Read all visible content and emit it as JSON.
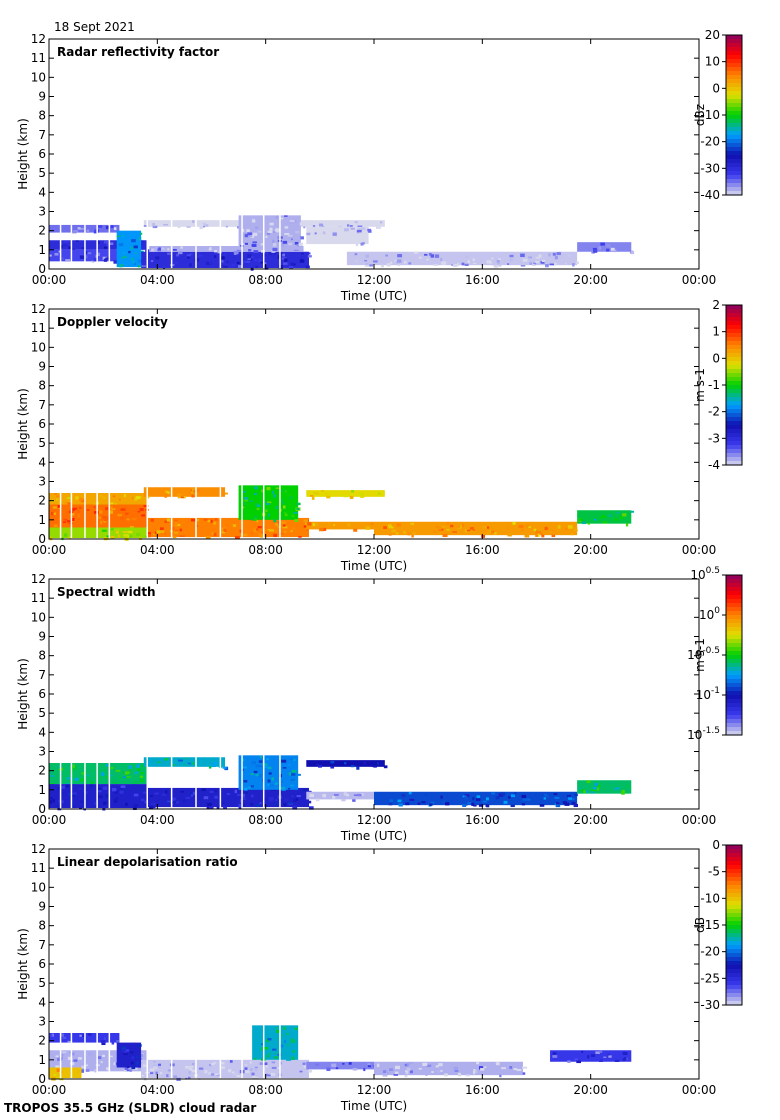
{
  "header": {
    "date": "18 Sept 2021"
  },
  "footer": {
    "caption": "TROPOS 35.5 GHz (SLDR) cloud radar"
  },
  "chart_data": [
    {
      "type": "heatmap",
      "title": "Radar reflectivity factor",
      "xlabel": "Time (UTC)",
      "ylabel": "Height (km)",
      "xticks": [
        "00:00",
        "04:00",
        "08:00",
        "12:00",
        "16:00",
        "20:00",
        "00:00"
      ],
      "xlim_hours": [
        0,
        24
      ],
      "ylim_km": [
        0,
        12
      ],
      "yticks": [
        0,
        1,
        2,
        3,
        4,
        5,
        6,
        7,
        8,
        9,
        10,
        11,
        12
      ],
      "colorbar": {
        "unit": "dBz",
        "range": [
          -40,
          20
        ],
        "ticks": [
          {
            "value": 20,
            "label": "20"
          },
          {
            "value": 10,
            "label": "10"
          },
          {
            "value": 0,
            "label": "0"
          },
          {
            "value": -10,
            "label": "-10"
          },
          {
            "value": -20,
            "label": "-20"
          },
          {
            "value": -30,
            "label": "-30"
          },
          {
            "value": -40,
            "label": "-40"
          }
        ]
      },
      "echo_layers": [
        {
          "t0": 0.0,
          "t1": 2.6,
          "h0": 1.9,
          "h1": 2.3,
          "value": -35
        },
        {
          "t0": 0.0,
          "t1": 3.6,
          "h0": 1.0,
          "h1": 1.5,
          "value": -30
        },
        {
          "t0": 0.0,
          "t1": 2.6,
          "h0": 0.4,
          "h1": 1.0,
          "value": -33
        },
        {
          "t0": 2.5,
          "t1": 3.4,
          "h0": 0.1,
          "h1": 2.0,
          "value": -18
        },
        {
          "t0": 3.4,
          "t1": 9.6,
          "h0": 0.05,
          "h1": 0.9,
          "value": -30
        },
        {
          "t0": 3.7,
          "t1": 9.4,
          "h0": 0.9,
          "h1": 1.2,
          "value": -38
        },
        {
          "t0": 3.5,
          "t1": 12.4,
          "h0": 2.2,
          "h1": 2.55,
          "value": -40
        },
        {
          "t0": 7.0,
          "t1": 9.3,
          "h0": 1.0,
          "h1": 2.8,
          "value": -38
        },
        {
          "t0": 9.5,
          "t1": 11.8,
          "h0": 1.3,
          "h1": 2.2,
          "value": -40
        },
        {
          "t0": 11.0,
          "t1": 19.5,
          "h0": 0.2,
          "h1": 0.9,
          "value": -39
        },
        {
          "t0": 19.5,
          "t1": 21.5,
          "h0": 0.9,
          "h1": 1.4,
          "value": -36
        }
      ]
    },
    {
      "type": "heatmap",
      "title": "Doppler velocity",
      "xlabel": "Time (UTC)",
      "ylabel": "Height (km)",
      "xticks": [
        "00:00",
        "04:00",
        "08:00",
        "12:00",
        "16:00",
        "20:00",
        "00:00"
      ],
      "xlim_hours": [
        0,
        24
      ],
      "ylim_km": [
        0,
        12
      ],
      "yticks": [
        0,
        1,
        2,
        3,
        4,
        5,
        6,
        7,
        8,
        9,
        10,
        11,
        12
      ],
      "colorbar": {
        "unit": "m s-1",
        "range": [
          -4,
          2
        ],
        "ticks": [
          {
            "value": 2,
            "label": "2"
          },
          {
            "value": 1,
            "label": "1"
          },
          {
            "value": 0,
            "label": "0"
          },
          {
            "value": -1,
            "label": "-1"
          },
          {
            "value": -2,
            "label": "-2"
          },
          {
            "value": -3,
            "label": "-3"
          },
          {
            "value": -4,
            "label": "-4"
          }
        ]
      },
      "echo_layers": [
        {
          "t0": 0.0,
          "t1": 3.6,
          "h0": 1.8,
          "h1": 2.4,
          "value": 0.2
        },
        {
          "t0": 0.0,
          "t1": 3.6,
          "h0": 0.6,
          "h1": 1.8,
          "value": 0.6
        },
        {
          "t0": 0.0,
          "t1": 3.6,
          "h0": 0.05,
          "h1": 0.6,
          "value": -0.5
        },
        {
          "t0": 3.5,
          "t1": 6.5,
          "h0": 2.2,
          "h1": 2.7,
          "value": 0.4
        },
        {
          "t0": 3.6,
          "t1": 9.6,
          "h0": 0.1,
          "h1": 1.1,
          "value": 0.5
        },
        {
          "t0": 7.0,
          "t1": 9.2,
          "h0": 1.0,
          "h1": 2.8,
          "value": -1.0
        },
        {
          "t0": 9.5,
          "t1": 12.4,
          "h0": 2.2,
          "h1": 2.55,
          "value": -0.2
        },
        {
          "t0": 9.5,
          "t1": 12.0,
          "h0": 0.5,
          "h1": 0.9,
          "value": 0.3
        },
        {
          "t0": 12.0,
          "t1": 19.5,
          "h0": 0.2,
          "h1": 0.9,
          "value": 0.3
        },
        {
          "t0": 19.5,
          "t1": 21.5,
          "h0": 0.8,
          "h1": 1.5,
          "value": -1.2
        }
      ]
    },
    {
      "type": "heatmap",
      "title": "Spectral width",
      "xlabel": "Time (UTC)",
      "ylabel": "Height (km)",
      "xticks": [
        "00:00",
        "04:00",
        "08:00",
        "12:00",
        "16:00",
        "20:00",
        "00:00"
      ],
      "xlim_hours": [
        0,
        24
      ],
      "ylim_km": [
        0,
        12
      ],
      "yticks": [
        0,
        1,
        2,
        3,
        4,
        5,
        6,
        7,
        8,
        9,
        10,
        11,
        12
      ],
      "colorbar": {
        "unit": "m s-1",
        "scale": "log10",
        "range": [
          -1.5,
          0.5
        ],
        "ticks": [
          {
            "value": 0.5,
            "base": "10",
            "exp": "0.5"
          },
          {
            "value": 0,
            "base": "10",
            "exp": "0"
          },
          {
            "value": -0.5,
            "base": "10",
            "exp": "-0.5"
          },
          {
            "value": -1,
            "base": "10",
            "exp": "-1"
          },
          {
            "value": -1.5,
            "base": "10",
            "exp": "-1.5"
          }
        ]
      },
      "echo_layers": [
        {
          "t0": 0.0,
          "t1": 3.6,
          "h0": 1.3,
          "h1": 2.4,
          "value": -0.6
        },
        {
          "t0": 0.0,
          "t1": 3.6,
          "h0": 0.05,
          "h1": 1.3,
          "value": -1.1
        },
        {
          "t0": 3.5,
          "t1": 6.5,
          "h0": 2.2,
          "h1": 2.7,
          "value": -0.7
        },
        {
          "t0": 3.6,
          "t1": 9.6,
          "h0": 0.1,
          "h1": 1.1,
          "value": -1.1
        },
        {
          "t0": 7.0,
          "t1": 9.2,
          "h0": 1.0,
          "h1": 2.8,
          "value": -0.8
        },
        {
          "t0": 9.5,
          "t1": 12.4,
          "h0": 2.2,
          "h1": 2.55,
          "value": -1.0
        },
        {
          "t0": 9.5,
          "t1": 12.0,
          "h0": 0.5,
          "h1": 0.9,
          "value": -1.45
        },
        {
          "t0": 12.0,
          "t1": 19.5,
          "h0": 0.2,
          "h1": 0.9,
          "value": -0.9
        },
        {
          "t0": 19.5,
          "t1": 21.5,
          "h0": 0.8,
          "h1": 1.5,
          "value": -0.6
        }
      ]
    },
    {
      "type": "heatmap",
      "title": "Linear depolarisation ratio",
      "xlabel": "Time (UTC)",
      "ylabel": "Height (km)",
      "xticks": [
        "00:00",
        "04:00",
        "08:00",
        "12:00",
        "16:00",
        "20:00",
        "00:00"
      ],
      "xlim_hours": [
        0,
        24
      ],
      "ylim_km": [
        0,
        12
      ],
      "yticks": [
        0,
        1,
        2,
        3,
        4,
        5,
        6,
        7,
        8,
        9,
        10,
        11,
        12
      ],
      "colorbar": {
        "unit": "dB",
        "range": [
          -30,
          0
        ],
        "ticks": [
          {
            "value": 0,
            "label": "0"
          },
          {
            "value": -5,
            "label": "-5"
          },
          {
            "value": -10,
            "label": "-10"
          },
          {
            "value": -15,
            "label": "-15"
          },
          {
            "value": -20,
            "label": "-20"
          },
          {
            "value": -25,
            "label": "-25"
          },
          {
            "value": -30,
            "label": "-30"
          }
        ]
      },
      "echo_layers": [
        {
          "t0": 0.0,
          "t1": 2.6,
          "h0": 1.9,
          "h1": 2.4,
          "value": -26
        },
        {
          "t0": 0.0,
          "t1": 3.6,
          "h0": 0.4,
          "h1": 1.5,
          "value": -29
        },
        {
          "t0": 0.0,
          "t1": 1.2,
          "h0": 0.05,
          "h1": 0.6,
          "value": -10
        },
        {
          "t0": 2.5,
          "t1": 3.4,
          "h0": 0.6,
          "h1": 1.9,
          "value": -24
        },
        {
          "t0": 3.4,
          "t1": 9.6,
          "h0": 0.05,
          "h1": 1.0,
          "value": -29.5
        },
        {
          "t0": 7.5,
          "t1": 9.2,
          "h0": 1.0,
          "h1": 2.8,
          "value": -18
        },
        {
          "t0": 9.5,
          "t1": 12.0,
          "h0": 0.5,
          "h1": 0.9,
          "value": -28
        },
        {
          "t0": 12.0,
          "t1": 17.5,
          "h0": 0.2,
          "h1": 0.9,
          "value": -29
        },
        {
          "t0": 18.5,
          "t1": 21.5,
          "h0": 0.9,
          "h1": 1.5,
          "value": -26
        }
      ]
    }
  ]
}
